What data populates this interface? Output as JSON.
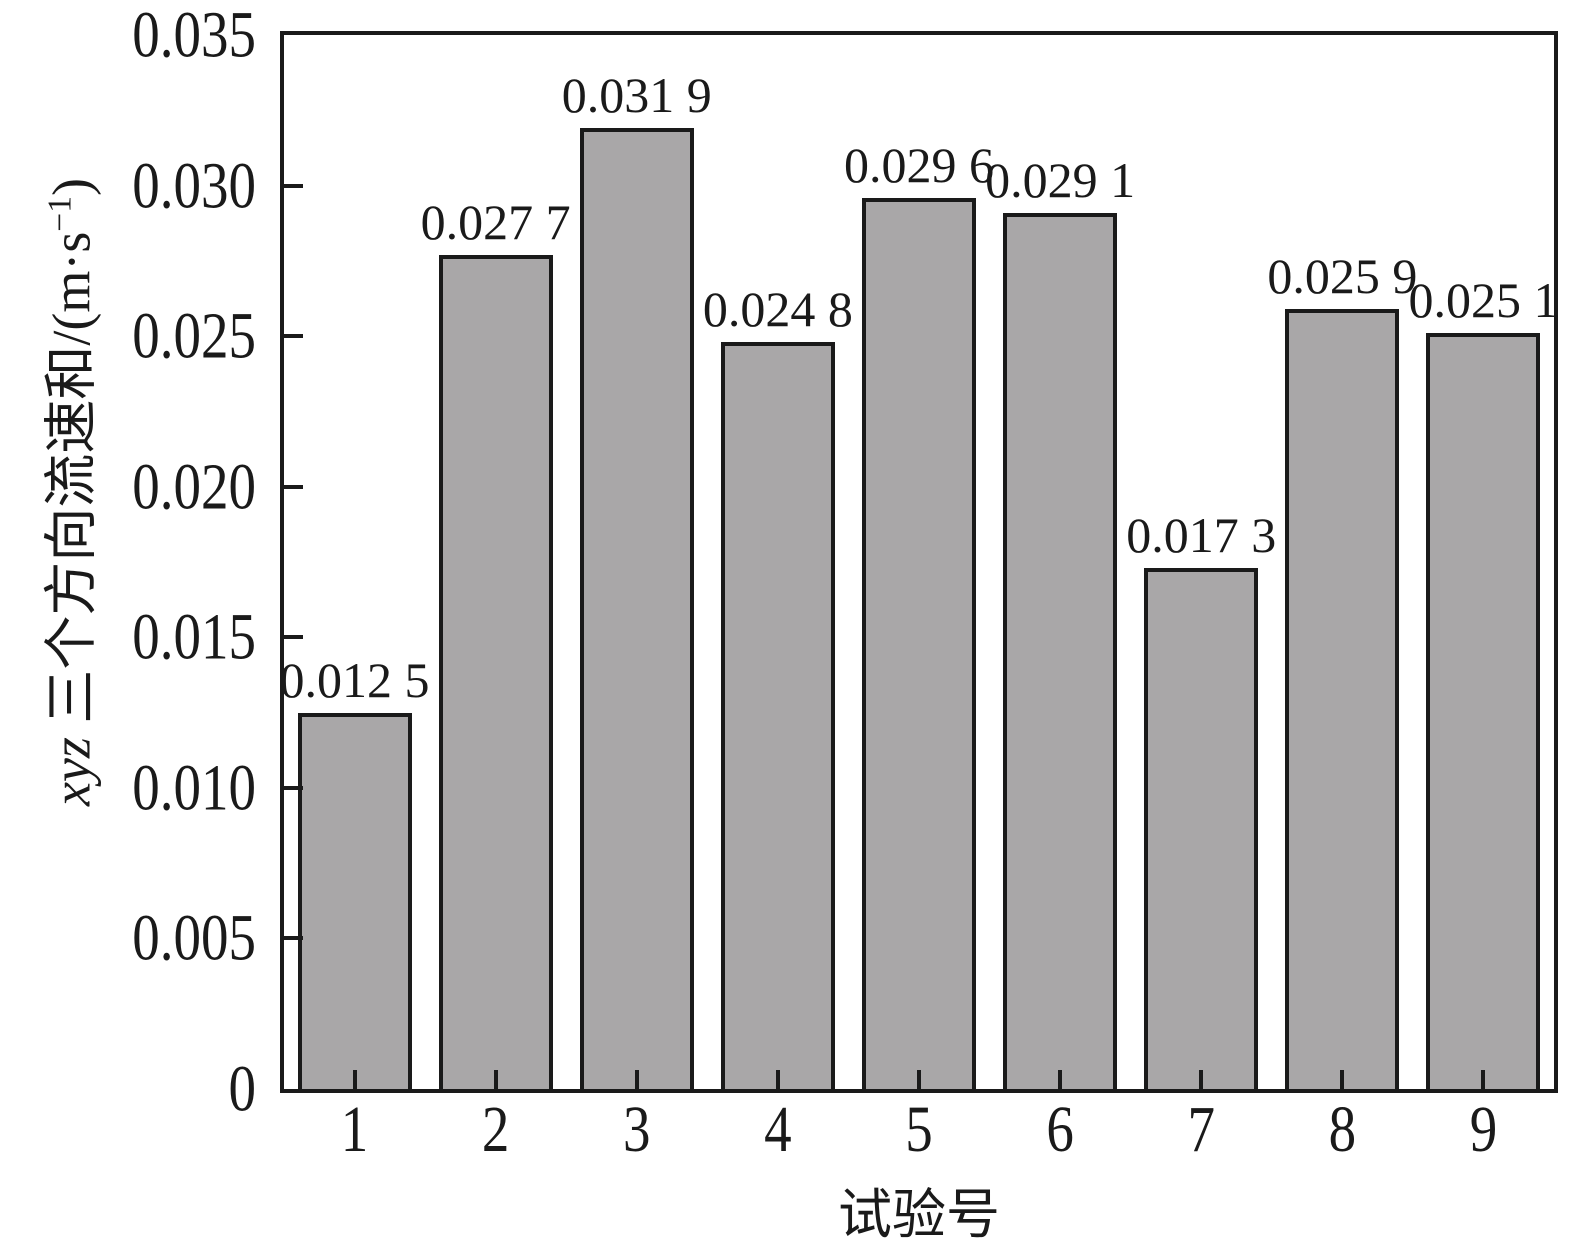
{
  "chart_data": {
    "type": "bar",
    "title": "",
    "xlabel": "试验号",
    "ylabel": "xyz 三个方向流速和/(m·s⁻¹)",
    "ylabel_parts": {
      "variable": "xyz",
      "text": " 三个方向流速和/(m·s",
      "superscript": "−1",
      "close_paren": ")"
    },
    "categories": [
      "1",
      "2",
      "3",
      "4",
      "5",
      "6",
      "7",
      "8",
      "9"
    ],
    "values": [
      0.0125,
      0.0277,
      0.0319,
      0.0248,
      0.0296,
      0.0291,
      0.0173,
      0.0259,
      0.0251
    ],
    "values_display": [
      "0.012 5",
      "0.027 7",
      "0.031 9",
      "0.024 8",
      "0.029 6",
      "0.029 1",
      "0.017 3",
      "0.025 9",
      "0.025 1"
    ],
    "ylim": [
      0,
      0.035
    ],
    "ytick_step": 0.005,
    "yticks": [
      "0",
      "0.005",
      "0.010",
      "0.015",
      "0.020",
      "0.025",
      "0.030",
      "0.035"
    ],
    "grid": false,
    "legend": null,
    "layout": {
      "bar_orientation": "vertical",
      "value_labels_position": "above-bars",
      "ticks_direction": "inside"
    },
    "colors": {
      "bar_fill": "#a9a7a8",
      "bar_border": "#1a1a1a",
      "axis": "#1a1a1a",
      "text": "#1a1a1a",
      "background": "#ffffff"
    }
  }
}
